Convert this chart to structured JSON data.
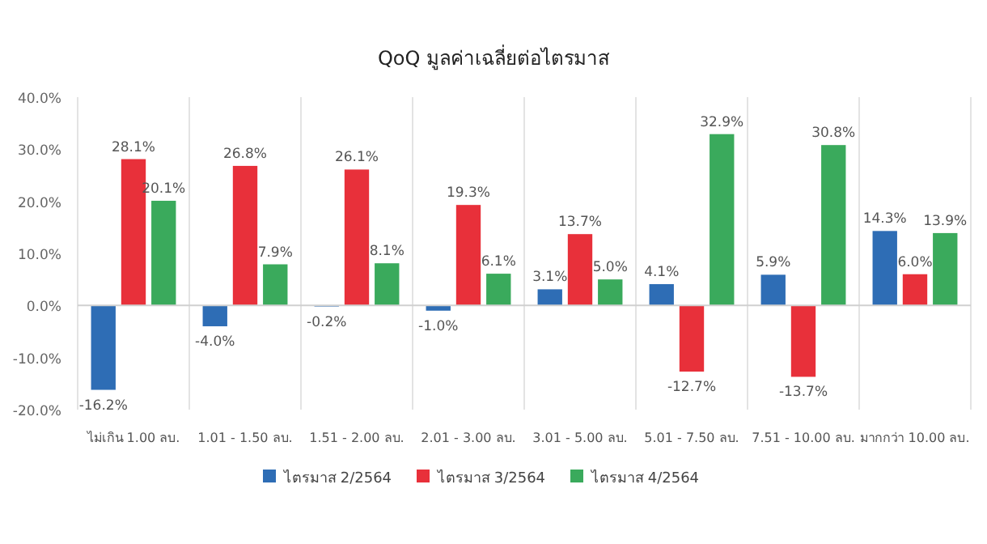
{
  "chart_data": {
    "type": "bar",
    "title": "QoQ มูลค่าเฉลี่ยต่อไตรมาส",
    "categories": [
      "ไม่เกิน 1.00 ลบ.",
      "1.01 - 1.50 ลบ.",
      "1.51 - 2.00 ลบ.",
      "2.01 - 3.00 ลบ.",
      "3.01 - 5.00 ลบ.",
      "5.01 - 7.50 ลบ.",
      "7.51 - 10.00 ลบ.",
      "มากกว่า 10.00 ลบ."
    ],
    "series": [
      {
        "name": "ไตรมาส 2/2564",
        "color": "#2e6db5",
        "values": [
          -16.2,
          -4.0,
          -0.2,
          -1.0,
          3.1,
          4.1,
          5.9,
          14.3
        ],
        "value_labels": [
          "-16.2%",
          "-4.0%",
          "-0.2%",
          "-1.0%",
          "3.1%",
          "4.1%",
          "5.9%",
          "14.3%"
        ]
      },
      {
        "name": "ไตรมาส 3/2564",
        "color": "#e8303a",
        "values": [
          28.1,
          26.8,
          26.1,
          19.3,
          13.7,
          -12.7,
          -13.7,
          6.0
        ],
        "value_labels": [
          "28.1%",
          "26.8%",
          "26.1%",
          "19.3%",
          "13.7%",
          "-12.7%",
          "-13.7%",
          "6.0%"
        ]
      },
      {
        "name": "ไตรมาส 4/2564",
        "color": "#3aaa5c",
        "values": [
          20.1,
          7.9,
          8.1,
          6.1,
          5.0,
          32.9,
          30.8,
          13.9
        ],
        "value_labels": [
          "20.1%",
          "7.9%",
          "8.1%",
          "6.1%",
          "5.0%",
          "32.9%",
          "30.8%",
          "13.9%"
        ]
      }
    ],
    "ylim": [
      -20,
      40
    ],
    "yticks": [
      {
        "value": 40,
        "label": "40.0%"
      },
      {
        "value": 30,
        "label": "30.0%"
      },
      {
        "value": 20,
        "label": "20.0%"
      },
      {
        "value": 10,
        "label": "10.0%"
      },
      {
        "value": 0,
        "label": "0.0%"
      },
      {
        "value": -10,
        "label": "-10.0%"
      },
      {
        "value": -20,
        "label": "-20.0%"
      }
    ],
    "grid": "x",
    "legend": "bottom"
  }
}
